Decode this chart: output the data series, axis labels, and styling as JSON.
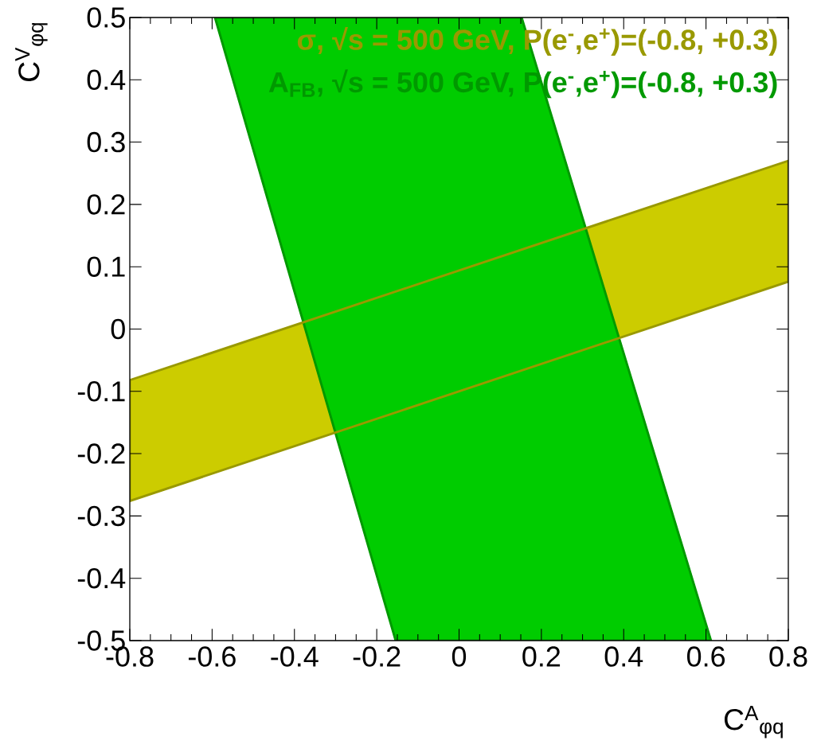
{
  "chart_data": {
    "type": "area",
    "xlabel": "C$^{A}$$_{φq}$",
    "ylabel": "C$^{V}$$_{φq}$",
    "xlim": [
      -0.8,
      0.8
    ],
    "ylim": [
      -0.5,
      0.5
    ],
    "xticks": [
      -0.8,
      {
        "value": -0.75,
        "label": null
      },
      {
        "value": -0.7,
        "label": null
      },
      {
        "value": -0.65,
        "label": null
      },
      -0.6,
      {
        "value": -0.55,
        "label": null
      },
      {
        "value": -0.5,
        "label": null
      },
      {
        "value": -0.45,
        "label": null
      },
      -0.4,
      {
        "value": -0.35,
        "label": null
      },
      {
        "value": -0.3,
        "label": null
      },
      {
        "value": -0.25,
        "label": null
      },
      -0.2,
      {
        "value": -0.15,
        "label": null
      },
      {
        "value": -0.1,
        "label": null
      },
      {
        "value": -0.05,
        "label": null
      },
      0,
      {
        "value": 0.05,
        "label": null
      },
      {
        "value": 0.1,
        "label": null
      },
      {
        "value": 0.15,
        "label": null
      },
      0.2,
      {
        "value": 0.25,
        "label": null
      },
      {
        "value": 0.3,
        "label": null
      },
      {
        "value": 0.35,
        "label": null
      },
      0.4,
      {
        "value": 0.45,
        "label": null
      },
      {
        "value": 0.5,
        "label": null
      },
      {
        "value": 0.55,
        "label": null
      },
      0.6,
      {
        "value": 0.65,
        "label": null
      },
      {
        "value": 0.7,
        "label": null
      },
      {
        "value": 0.75,
        "label": null
      },
      0.8
    ],
    "yticks": [
      -0.5,
      -0.4,
      -0.3,
      -0.2,
      -0.1,
      0,
      0.1,
      0.2,
      0.3,
      0.4,
      0.5
    ],
    "grid": false,
    "legend": "top right",
    "series": [
      {
        "name": "σ, √s = 500 GeV, P(e$^{-}$,e$^{+}$)=(-0.8, +0.3)",
        "color": "#cccc00",
        "x": [
          -0.8,
          0.8,
          0.8,
          -0.8
        ],
        "values": [
          -0.082,
          0.27,
          0.076,
          -0.276
        ]
      },
      {
        "name": "A$_{FB}$, √s = 500 GeV, P(e$^{-}$,e$^{+}$)=(-0.8, +0.3)",
        "color": "#00cc00",
        "x": [
          -0.593,
          0.152,
          0.612,
          -0.154
        ],
        "values": [
          0.5,
          0.5,
          -0.5,
          -0.5
        ]
      }
    ]
  }
}
